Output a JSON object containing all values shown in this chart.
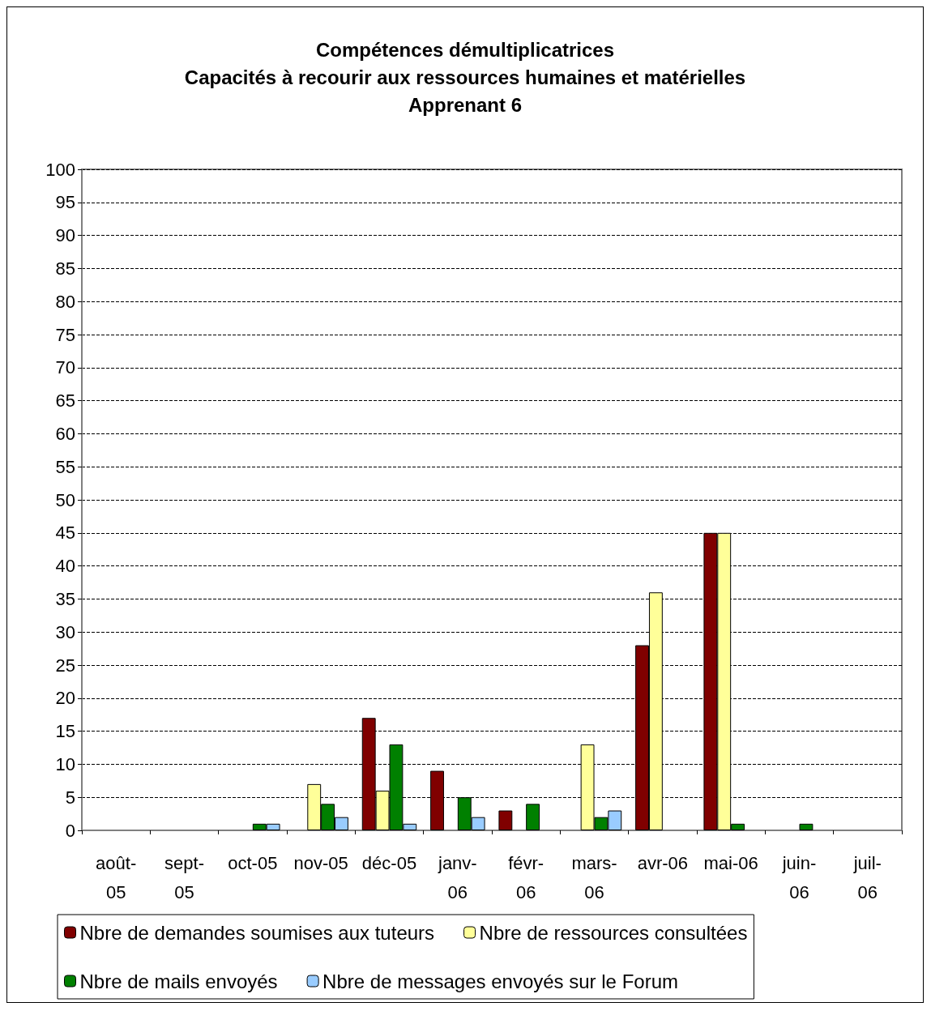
{
  "chart_data": {
    "type": "bar",
    "title": "Compétences démultiplicatrices\nCapacités à recourir aux ressources humaines et matérielles\nApprenant 6",
    "categories": [
      "août-05",
      "sept-05",
      "oct-05",
      "nov-05",
      "déc-05",
      "janv-06",
      "févr-06",
      "mars-06",
      "avr-06",
      "mai-06",
      "juin-06",
      "juil-06"
    ],
    "series": [
      {
        "name": "Nbre de demandes soumises aux tuteurs",
        "color": "#800000",
        "values": [
          null,
          null,
          null,
          null,
          17,
          9,
          3,
          null,
          28,
          45,
          null,
          null
        ]
      },
      {
        "name": "Nbre de ressources consultées",
        "color": "#ffff99",
        "values": [
          null,
          null,
          null,
          7,
          6,
          null,
          null,
          13,
          36,
          45,
          null,
          null
        ]
      },
      {
        "name": "Nbre de mails envoyés",
        "color": "#008000",
        "values": [
          null,
          null,
          1,
          4,
          13,
          5,
          4,
          2,
          null,
          1,
          1,
          null
        ]
      },
      {
        "name": "Nbre de messages envoyés sur le Forum",
        "color": "#99ccff",
        "values": [
          null,
          null,
          1,
          2,
          1,
          2,
          null,
          3,
          null,
          null,
          null,
          null
        ]
      }
    ],
    "ylim": [
      0,
      100
    ],
    "yticks": [
      0,
      5,
      10,
      15,
      20,
      25,
      30,
      35,
      40,
      45,
      50,
      55,
      60,
      65,
      70,
      75,
      80,
      85,
      90,
      95,
      100
    ],
    "grid": "y",
    "legend": "bottom"
  }
}
